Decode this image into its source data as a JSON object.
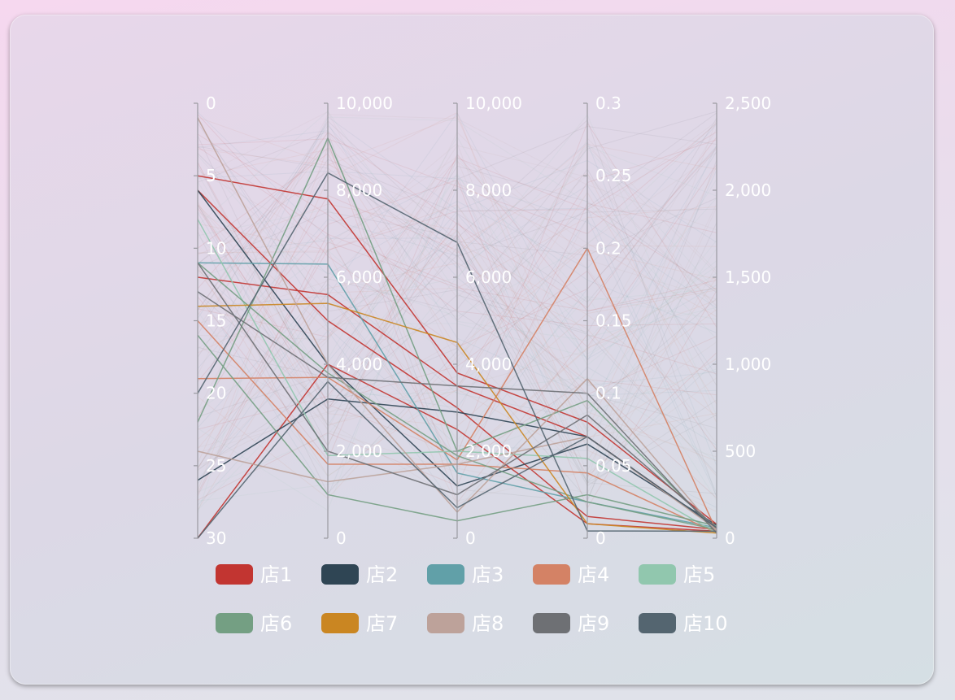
{
  "chart_data": {
    "type": "parallel",
    "axes": [
      {
        "name": "",
        "min": 0,
        "max": 30,
        "inverse": true,
        "ticks": [
          "0",
          "5",
          "10",
          "15",
          "20",
          "25",
          "30"
        ],
        "tick_values": [
          0,
          5,
          10,
          15,
          20,
          25,
          30
        ]
      },
      {
        "name": "",
        "min": 0,
        "max": 10000,
        "ticks": [
          "0",
          "2,000",
          "4,000",
          "6,000",
          "8,000",
          "10,000"
        ],
        "tick_values": [
          0,
          2000,
          4000,
          6000,
          8000,
          10000
        ]
      },
      {
        "name": "",
        "min": 0,
        "max": 10000,
        "ticks": [
          "0",
          "2,000",
          "4,000",
          "6,000",
          "8,000",
          "10,000"
        ],
        "tick_values": [
          0,
          2000,
          4000,
          6000,
          8000,
          10000
        ]
      },
      {
        "name": "",
        "min": 0,
        "max": 0.3,
        "ticks": [
          "0",
          "0.05",
          "0.1",
          "0.15",
          "0.2",
          "0.25",
          "0.3"
        ],
        "tick_values": [
          0,
          0.05,
          0.1,
          0.15,
          0.2,
          0.25,
          0.3
        ]
      },
      {
        "name": "",
        "min": 0,
        "max": 2500,
        "ticks": [
          "0",
          "500",
          "1,000",
          "1,500",
          "2,000",
          "2,500"
        ],
        "tick_values": [
          0,
          500,
          1000,
          1500,
          2000,
          2500
        ]
      }
    ],
    "series": [
      {
        "name": "店1",
        "color": "#c23531",
        "lines": [
          [
            5,
            7800,
            3800,
            0.08,
            80
          ],
          [
            30,
            4000,
            2500,
            0.01,
            40
          ],
          [
            12,
            5600,
            3500,
            0.07,
            60
          ],
          [
            6,
            5000,
            3000,
            0.015,
            50
          ]
        ]
      },
      {
        "name": "店2",
        "color": "#2f4554",
        "lines": [
          [
            6,
            4000,
            1200,
            0.065,
            75
          ],
          [
            26,
            3200,
            2900,
            0.07,
            60
          ]
        ]
      },
      {
        "name": "店3",
        "color": "#61a0a8",
        "lines": [
          [
            11,
            6300,
            1500,
            0.025,
            60
          ]
        ]
      },
      {
        "name": "店4",
        "color": "#d48265",
        "lines": [
          [
            19,
            3700,
            1800,
            0.2,
            40
          ],
          [
            15,
            1700,
            1700,
            0.045,
            30
          ]
        ]
      },
      {
        "name": "店5",
        "color": "#91c7ae",
        "lines": [
          [
            8,
            1900,
            2000,
            0.055,
            30
          ]
        ]
      },
      {
        "name": "店6",
        "color": "#749f83",
        "lines": [
          [
            22,
            9200,
            2000,
            0.095,
            40
          ],
          [
            16,
            1000,
            400,
            0.03,
            70
          ],
          [
            11,
            3800,
            1900,
            0.025,
            50
          ]
        ]
      },
      {
        "name": "店7",
        "color": "#ca8622",
        "lines": [
          [
            14,
            5400,
            4500,
            0.01,
            30
          ]
        ]
      },
      {
        "name": "店8",
        "color": "#bda29a",
        "lines": [
          [
            1,
            4000,
            600,
            0.11,
            40
          ],
          [
            24,
            1300,
            1700,
            0.07,
            50
          ]
        ]
      },
      {
        "name": "店9",
        "color": "#6e7074",
        "lines": [
          [
            13,
            3700,
            3500,
            0.1,
            30
          ],
          [
            11,
            2000,
            1000,
            0.085,
            60
          ]
        ]
      },
      {
        "name": "店10",
        "color": "#546570",
        "lines": [
          [
            20,
            8400,
            6800,
            0.005,
            40
          ],
          [
            30,
            3600,
            700,
            0.07,
            60
          ]
        ]
      }
    ],
    "legend_position": "bottom-center",
    "grid": false
  }
}
